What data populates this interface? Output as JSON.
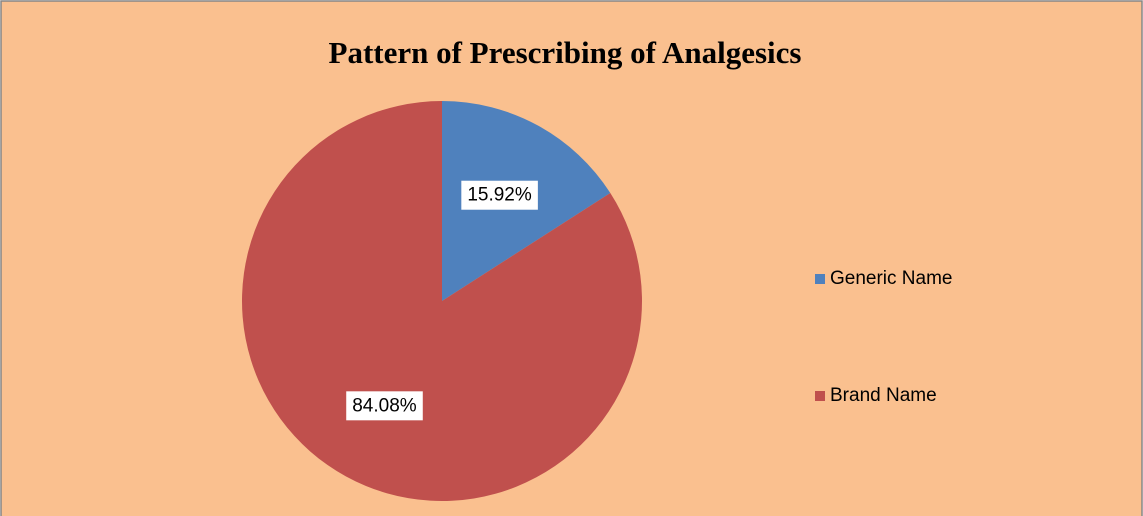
{
  "chart_data": {
    "type": "pie",
    "title": "Pattern of Prescribing of Analgesics",
    "categories": [
      "Generic Name",
      "Brand Name"
    ],
    "values": [
      15.92,
      84.08
    ],
    "value_labels": [
      "15.92%",
      "84.08%"
    ],
    "colors": [
      "#4f81bd",
      "#c0504d"
    ],
    "legend": "right"
  }
}
